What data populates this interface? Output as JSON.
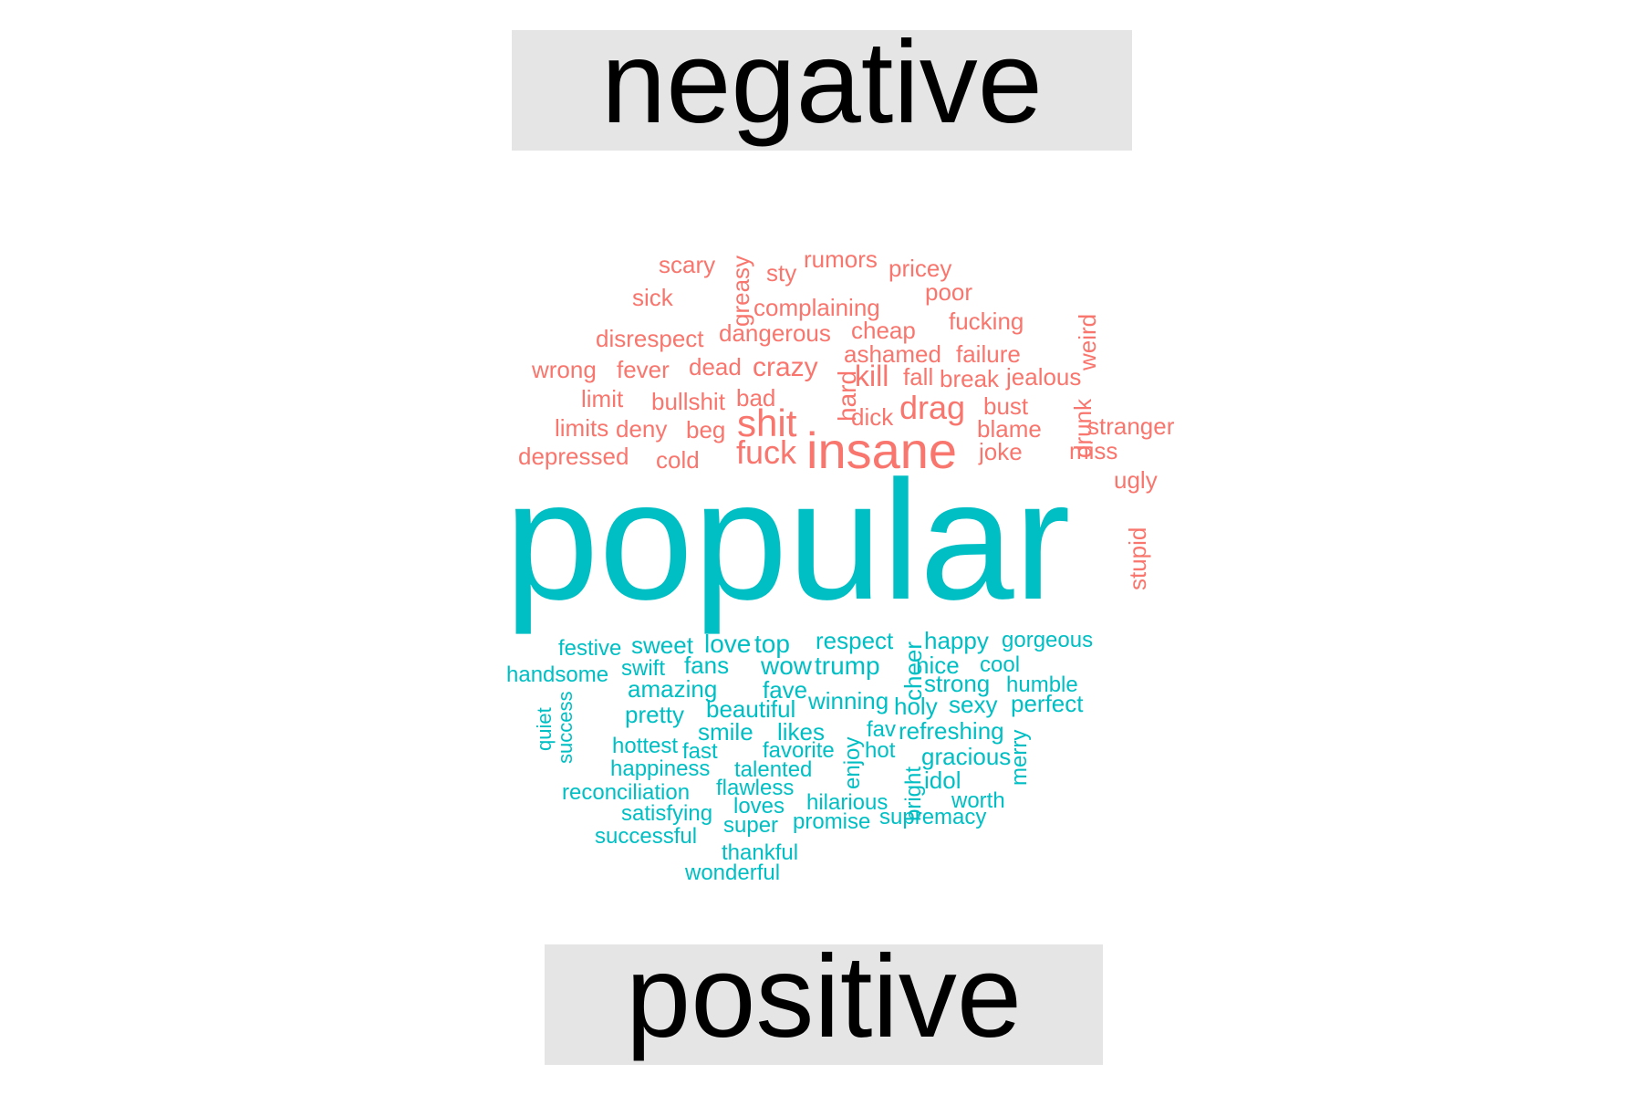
{
  "labels": {
    "top": "negative",
    "bottom": "positive"
  },
  "colors": {
    "negative": "#F8766D",
    "positive": "#00BFC4",
    "label_bg": "#E5E5E5"
  },
  "negative_words": [
    "scary",
    "greasy",
    "sty",
    "rumors",
    "pricey",
    "sick",
    "poor",
    "complaining",
    "fucking",
    "weird",
    "disrespect",
    "dangerous",
    "cheap",
    "ashamed",
    "failure",
    "wrong",
    "fever",
    "dead",
    "crazy",
    "hard",
    "kill",
    "fall",
    "break",
    "jealous",
    "limit",
    "bullshit",
    "bad",
    "drag",
    "bust",
    "drunk",
    "limits",
    "deny",
    "beg",
    "shit",
    "dick",
    "blame",
    "stranger",
    "depressed",
    "cold",
    "fuck",
    "insane",
    "joke",
    "miss",
    "ugly",
    "stupid"
  ],
  "featured_word": "popular",
  "positive_words": [
    "festive",
    "sweet",
    "love",
    "top",
    "respect",
    "cheer",
    "happy",
    "gorgeous",
    "handsome",
    "swift",
    "fans",
    "wow",
    "trump",
    "nice",
    "cool",
    "quiet",
    "success",
    "amazing",
    "fave",
    "strong",
    "humble",
    "pretty",
    "beautiful",
    "winning",
    "holy",
    "sexy",
    "perfect",
    "smile",
    "likes",
    "fav",
    "refreshing",
    "merry",
    "hottest",
    "fast",
    "favorite",
    "enjoy",
    "hot",
    "gracious",
    "happiness",
    "talented",
    "bright",
    "idol",
    "reconciliation",
    "flawless",
    "hilarious",
    "worth",
    "satisfying",
    "loves",
    "supremacy",
    "successful",
    "super",
    "promise",
    "thankful",
    "wonderful"
  ]
}
